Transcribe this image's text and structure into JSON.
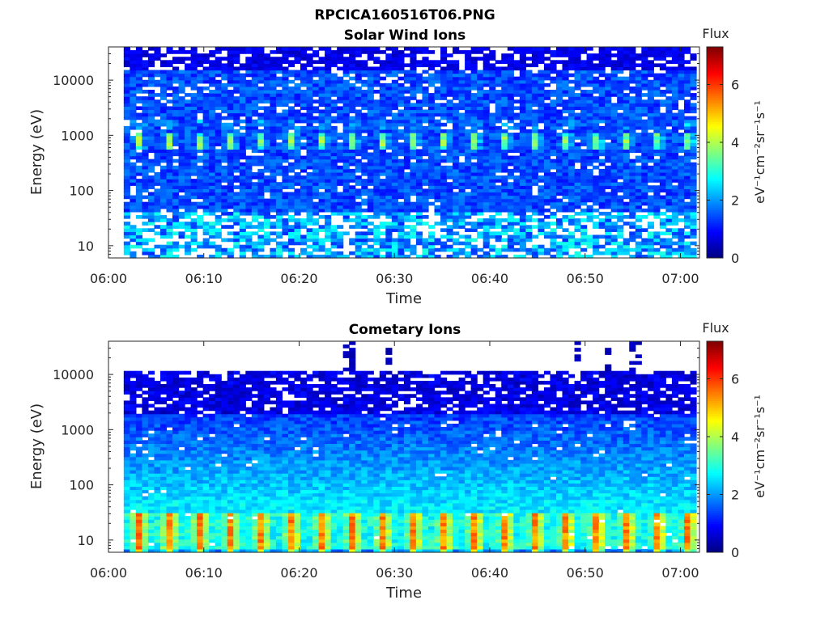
{
  "figure": {
    "title": "RPCICA160516T06.PNG"
  },
  "colorbar": {
    "colormap": "jet",
    "ticks": [
      "0",
      "2",
      "4",
      "6"
    ],
    "range": [
      0,
      7.3
    ]
  },
  "chart_data": [
    {
      "type": "heatmap",
      "title": "Solar Wind Ions",
      "xlabel": "Time",
      "ylabel": "Energy (eV)",
      "x_ticks": [
        "06:00",
        "06:10",
        "06:20",
        "06:30",
        "06:40",
        "06:50",
        "07:00"
      ],
      "x_range": [
        "06:00",
        "07:02"
      ],
      "y_ticks": [
        "10",
        "100",
        "1000",
        "10000"
      ],
      "y_scale": "log",
      "y_range": [
        6,
        40000
      ],
      "colorbar_label": "Flux",
      "colorbar_units": "eV⁻¹cm⁻²sr⁻¹s⁻¹",
      "features": {
        "background_level": 1.0,
        "periodic_peak_energy_eV": 800,
        "periodic_peak_flux": 3.3,
        "peak_period_min": 3.2,
        "low_energy_band_eV": [
          6,
          40
        ],
        "low_energy_flux": 1.8
      }
    },
    {
      "type": "heatmap",
      "title": "Cometary Ions",
      "xlabel": "Time",
      "ylabel": "Energy (eV)",
      "x_ticks": [
        "06:00",
        "06:10",
        "06:20",
        "06:30",
        "06:40",
        "06:50",
        "07:00"
      ],
      "x_range": [
        "06:00",
        "07:02"
      ],
      "y_ticks": [
        "10",
        "100",
        "1000",
        "10000"
      ],
      "y_scale": "log",
      "y_range": [
        6,
        40000
      ],
      "colorbar_label": "Flux",
      "colorbar_units": "eV⁻¹cm⁻²sr⁻¹s⁻¹",
      "features": {
        "upper_cutoff_eV": 11000,
        "high_energy_bursts": [
          "06:25",
          "06:29",
          "06:49",
          "06:52",
          "06:55"
        ],
        "low_energy_band_eV": [
          6,
          30
        ],
        "low_energy_peak_flux": 5.0,
        "peak_period_min": 3.2
      }
    }
  ]
}
